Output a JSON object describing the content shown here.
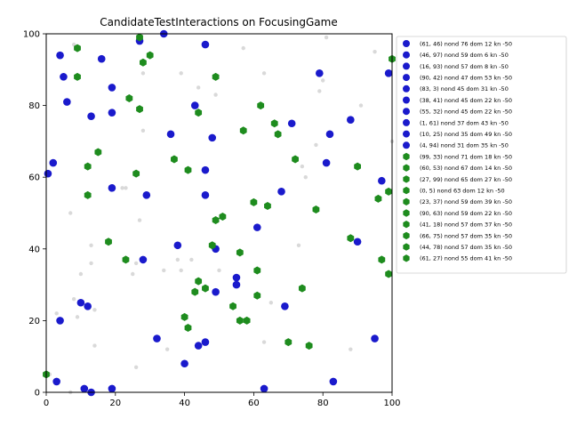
{
  "chart_data": {
    "type": "scatter",
    "title": "CandidateTestInteractions on FocusingGame",
    "xlabel": "",
    "ylabel": "",
    "xlim": [
      0,
      100
    ],
    "ylim": [
      0,
      100
    ],
    "xticks": [
      0,
      20,
      40,
      60,
      80,
      100
    ],
    "yticks": [
      0,
      20,
      40,
      60,
      80,
      100
    ],
    "grid": false,
    "legend_position": "right",
    "colors": {
      "blue": "#1a1acc",
      "green": "#1e8c1e",
      "background_points": "#d9d9d9"
    },
    "legend": [
      {
        "label": "(61, 46) nond 76 dom 12 kn -50",
        "color": "blue",
        "marker": "circle"
      },
      {
        "label": "(46, 97) nond 59 dom 6 kn -50",
        "color": "blue",
        "marker": "circle"
      },
      {
        "label": "(16, 93) nond 57 dom 8 kn -50",
        "color": "blue",
        "marker": "circle"
      },
      {
        "label": "(90, 42) nond 47 dom 53 kn -50",
        "color": "blue",
        "marker": "circle"
      },
      {
        "label": "(83, 3) nond 45 dom 31 kn -50",
        "color": "blue",
        "marker": "circle"
      },
      {
        "label": "(38, 41) nond 45 dom 22 kn -50",
        "color": "blue",
        "marker": "circle"
      },
      {
        "label": "(55, 32) nond 45 dom 22 kn -50",
        "color": "blue",
        "marker": "circle"
      },
      {
        "label": "(1, 61) nond 37 dom 43 kn -50",
        "color": "blue",
        "marker": "circle"
      },
      {
        "label": "(10, 25) nond 35 dom 49 kn -50",
        "color": "blue",
        "marker": "circle"
      },
      {
        "label": "(4, 94) nond 31 dom 35 kn -50",
        "color": "blue",
        "marker": "circle"
      },
      {
        "label": "(99, 33) nond 71 dom 18 kn -50",
        "color": "green",
        "marker": "hexagon"
      },
      {
        "label": "(60, 53) nond 67 dom 14 kn -50",
        "color": "green",
        "marker": "hexagon"
      },
      {
        "label": "(27, 99) nond 65 dom 27 kn -50",
        "color": "green",
        "marker": "hexagon"
      },
      {
        "label": "(0, 5) nond 63 dom 12 kn -50",
        "color": "green",
        "marker": "hexagon"
      },
      {
        "label": "(23, 37) nond 59 dom 39 kn -50",
        "color": "green",
        "marker": "hexagon"
      },
      {
        "label": "(90, 63) nond 59 dom 22 kn -50",
        "color": "green",
        "marker": "hexagon"
      },
      {
        "label": "(41, 18) nond 57 dom 37 kn -50",
        "color": "green",
        "marker": "hexagon"
      },
      {
        "label": "(66, 75) nond 57 dom 35 kn -50",
        "color": "green",
        "marker": "hexagon"
      },
      {
        "label": "(44, 78) nond 57 dom 35 kn -50",
        "color": "green",
        "marker": "hexagon"
      },
      {
        "label": "(61, 27) nond 55 dom 41 kn -50",
        "color": "green",
        "marker": "hexagon"
      }
    ],
    "series": [
      {
        "color": "blue",
        "marker": "circle",
        "points": [
          [
            0.5,
            61
          ],
          [
            2,
            64
          ],
          [
            4,
            94
          ],
          [
            5,
            88
          ],
          [
            6,
            81
          ],
          [
            3,
            3
          ],
          [
            4,
            20
          ],
          [
            10,
            25
          ],
          [
            11,
            1
          ],
          [
            12,
            24
          ],
          [
            13,
            0
          ],
          [
            13,
            77
          ],
          [
            16,
            93
          ],
          [
            19,
            85
          ],
          [
            19,
            78
          ],
          [
            19,
            57
          ],
          [
            19,
            1
          ],
          [
            27,
            98
          ],
          [
            28,
            37
          ],
          [
            29,
            55
          ],
          [
            32,
            15
          ],
          [
            34,
            100
          ],
          [
            36,
            72
          ],
          [
            38,
            41
          ],
          [
            40,
            8
          ],
          [
            43,
            80
          ],
          [
            44,
            13
          ],
          [
            46,
            97
          ],
          [
            46,
            62
          ],
          [
            46,
            55
          ],
          [
            46,
            14
          ],
          [
            48,
            71
          ],
          [
            49,
            40
          ],
          [
            49,
            28
          ],
          [
            55,
            32
          ],
          [
            55,
            30
          ],
          [
            61,
            46
          ],
          [
            63,
            1
          ],
          [
            68,
            56
          ],
          [
            69,
            24
          ],
          [
            71,
            75
          ],
          [
            79,
            89
          ],
          [
            81,
            64
          ],
          [
            82,
            72
          ],
          [
            83,
            3
          ],
          [
            88,
            76
          ],
          [
            90,
            42
          ],
          [
            95,
            15
          ],
          [
            97,
            59
          ],
          [
            99,
            89
          ]
        ]
      },
      {
        "color": "green",
        "marker": "hexagon",
        "points": [
          [
            0,
            5
          ],
          [
            9,
            96
          ],
          [
            9,
            88
          ],
          [
            12,
            63
          ],
          [
            12,
            55
          ],
          [
            15,
            67
          ],
          [
            18,
            42
          ],
          [
            23,
            37
          ],
          [
            24,
            82
          ],
          [
            26,
            61
          ],
          [
            27,
            79
          ],
          [
            27,
            99
          ],
          [
            28,
            92
          ],
          [
            30,
            94
          ],
          [
            37,
            65
          ],
          [
            40,
            21
          ],
          [
            41,
            18
          ],
          [
            41,
            62
          ],
          [
            43,
            28
          ],
          [
            44,
            78
          ],
          [
            44,
            31
          ],
          [
            46,
            29
          ],
          [
            48,
            41
          ],
          [
            49,
            88
          ],
          [
            49,
            48
          ],
          [
            51,
            49
          ],
          [
            54,
            24
          ],
          [
            56,
            39
          ],
          [
            56,
            20
          ],
          [
            57,
            73
          ],
          [
            58,
            20
          ],
          [
            60,
            53
          ],
          [
            61,
            34
          ],
          [
            61,
            27
          ],
          [
            62,
            80
          ],
          [
            64,
            52
          ],
          [
            66,
            75
          ],
          [
            67,
            72
          ],
          [
            70,
            14
          ],
          [
            72,
            65
          ],
          [
            74,
            29
          ],
          [
            76,
            13
          ],
          [
            78,
            51
          ],
          [
            88,
            43
          ],
          [
            90,
            63
          ],
          [
            96,
            54
          ],
          [
            97,
            37
          ],
          [
            99,
            33
          ],
          [
            99,
            56
          ],
          [
            100,
            93
          ]
        ]
      },
      {
        "color": "background_points",
        "marker": "circle",
        "points": [
          [
            1,
            5
          ],
          [
            3,
            22
          ],
          [
            7,
            50
          ],
          [
            7,
            0
          ],
          [
            8,
            97
          ],
          [
            8,
            26
          ],
          [
            9,
            21
          ],
          [
            10,
            33
          ],
          [
            13,
            41
          ],
          [
            13,
            36
          ],
          [
            14,
            13
          ],
          [
            14,
            23
          ],
          [
            22,
            57
          ],
          [
            23,
            57
          ],
          [
            25,
            33
          ],
          [
            26,
            36
          ],
          [
            26,
            7
          ],
          [
            27,
            48
          ],
          [
            28,
            73
          ],
          [
            28,
            89
          ],
          [
            34,
            34
          ],
          [
            35,
            12
          ],
          [
            38,
            37
          ],
          [
            39,
            34
          ],
          [
            39,
            89
          ],
          [
            42,
            37
          ],
          [
            44,
            85
          ],
          [
            49,
            83
          ],
          [
            50,
            34
          ],
          [
            57,
            96
          ],
          [
            63,
            89
          ],
          [
            63,
            14
          ],
          [
            65,
            25
          ],
          [
            73,
            41
          ],
          [
            74,
            63
          ],
          [
            75,
            60
          ],
          [
            78,
            69
          ],
          [
            79,
            84
          ],
          [
            80,
            87
          ],
          [
            81,
            99
          ],
          [
            88,
            12
          ],
          [
            91,
            80
          ],
          [
            95,
            95
          ],
          [
            100,
            70
          ]
        ]
      }
    ]
  }
}
